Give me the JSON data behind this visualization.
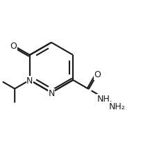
{
  "background_color": "#ffffff",
  "line_color": "#1a1a1a",
  "line_width": 1.5,
  "font_size": 9.0,
  "figsize": [
    2.16,
    2.4
  ],
  "dpi": 100,
  "label_N2": "N",
  "label_N3": "N",
  "label_O1": "O",
  "label_O2": "O",
  "label_NH": "NH",
  "label_NH2": "NH₂"
}
